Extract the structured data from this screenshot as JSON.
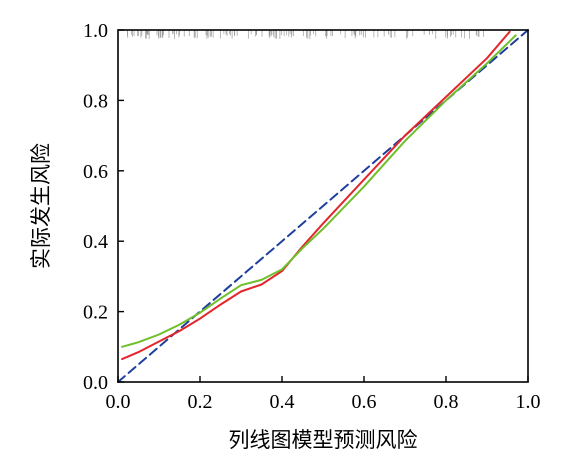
{
  "chart_data": {
    "type": "line",
    "title": "",
    "xlabel": "列线图模型预测风险",
    "ylabel": "实际发生风险",
    "xlim": [
      0,
      1
    ],
    "ylim": [
      0,
      1
    ],
    "x_ticks": [
      "0.0",
      "0.2",
      "0.4",
      "0.6",
      "0.8",
      "1.0"
    ],
    "y_ticks": [
      "0.0",
      "0.2",
      "0.4",
      "0.6",
      "0.8",
      "1.0"
    ],
    "grid": false,
    "legend": "none",
    "rug": "top",
    "series": [
      {
        "style": "dashed",
        "color": "#1f3f9f",
        "x": [
          0.0,
          1.0
        ],
        "y": [
          0.0,
          1.0
        ]
      },
      {
        "style": "solid",
        "color": "#e3262b",
        "x": [
          0.01,
          0.05,
          0.1,
          0.15,
          0.2,
          0.25,
          0.3,
          0.35,
          0.4,
          0.45,
          0.5,
          0.6,
          0.7,
          0.8,
          0.9,
          0.955
        ],
        "y": [
          0.065,
          0.085,
          0.115,
          0.145,
          0.18,
          0.22,
          0.257,
          0.277,
          0.315,
          0.385,
          0.45,
          0.575,
          0.7,
          0.81,
          0.92,
          0.995
        ]
      },
      {
        "style": "solid",
        "color": "#6fbf2a",
        "x": [
          0.01,
          0.05,
          0.1,
          0.15,
          0.2,
          0.25,
          0.3,
          0.35,
          0.4,
          0.45,
          0.5,
          0.6,
          0.7,
          0.8,
          0.9,
          0.97
        ],
        "y": [
          0.1,
          0.113,
          0.135,
          0.163,
          0.197,
          0.237,
          0.275,
          0.29,
          0.32,
          0.38,
          0.435,
          0.555,
          0.685,
          0.8,
          0.905,
          0.985
        ]
      }
    ]
  }
}
